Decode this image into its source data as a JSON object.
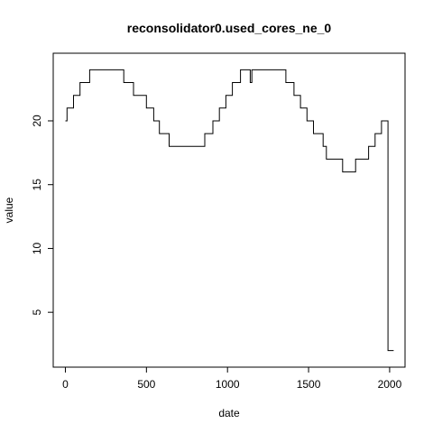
{
  "chart_data": {
    "type": "line",
    "title": "reconsolidator0.used_cores_ne_0",
    "xlabel": "date",
    "ylabel": "value",
    "xlim": [
      -75,
      2095
    ],
    "ylim": [
      0.7,
      25.3
    ],
    "x_ticks": [
      0,
      500,
      1000,
      1500,
      2000
    ],
    "y_ticks": [
      5,
      10,
      15,
      20
    ],
    "grid": false,
    "legend": "none",
    "series": [
      {
        "step": true,
        "points": [
          [
            0,
            20
          ],
          [
            10,
            21
          ],
          [
            50,
            22
          ],
          [
            90,
            23
          ],
          [
            150,
            24
          ],
          [
            360,
            23
          ],
          [
            420,
            22
          ],
          [
            500,
            21
          ],
          [
            545,
            20
          ],
          [
            580,
            19
          ],
          [
            640,
            18
          ],
          [
            860,
            19
          ],
          [
            910,
            20
          ],
          [
            950,
            21
          ],
          [
            990,
            22
          ],
          [
            1030,
            23
          ],
          [
            1080,
            24
          ],
          [
            1140,
            23
          ],
          [
            1150,
            24
          ],
          [
            1360,
            23
          ],
          [
            1410,
            22
          ],
          [
            1450,
            21
          ],
          [
            1490,
            20
          ],
          [
            1530,
            19
          ],
          [
            1590,
            18
          ],
          [
            1610,
            17
          ],
          [
            1710,
            16
          ],
          [
            1790,
            17
          ],
          [
            1870,
            18
          ],
          [
            1910,
            19
          ],
          [
            1950,
            20
          ],
          [
            1990,
            2
          ],
          [
            2025,
            2
          ]
        ]
      }
    ]
  }
}
